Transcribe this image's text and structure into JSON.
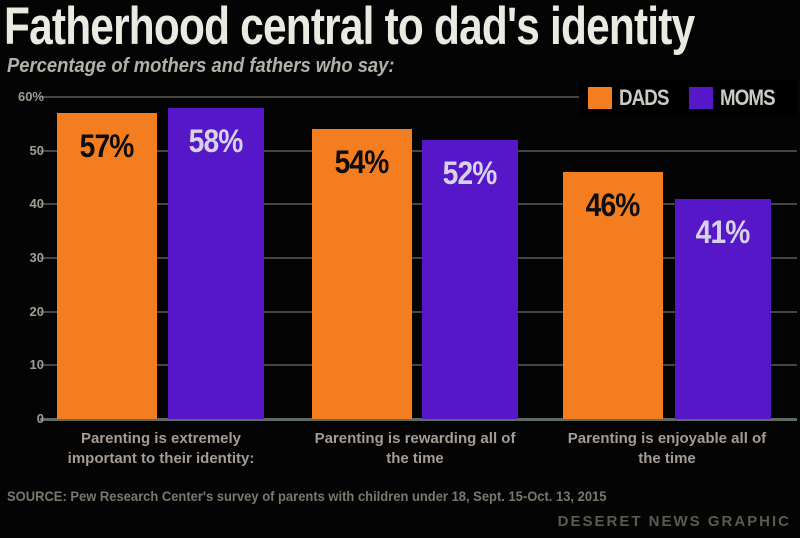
{
  "chart_data": {
    "type": "bar",
    "title": "Fatherhood central to dad's identity",
    "subtitle": "Percentage of mothers and fathers who say:",
    "categories": [
      "Parenting is extremely\nimportant to their identity:",
      "Parenting is rewarding all of\nthe time",
      "Parenting is enjoyable all of\nthe time"
    ],
    "series": [
      {
        "name": "DADS",
        "color": "#f47d20",
        "label_color": "#0d0d0d",
        "values": [
          57,
          54,
          46
        ]
      },
      {
        "name": "MOMS",
        "color": "#5517c8",
        "label_color": "#d7d2e8",
        "values": [
          58,
          52,
          41
        ]
      }
    ],
    "value_suffix": "%",
    "xlabel": "",
    "ylabel": "",
    "ylim": [
      0,
      60
    ],
    "yticks": [
      {
        "v": 60,
        "label": "60%"
      },
      {
        "v": 50,
        "label": "50"
      },
      {
        "v": 40,
        "label": "40"
      },
      {
        "v": 30,
        "label": "30"
      },
      {
        "v": 20,
        "label": "20"
      },
      {
        "v": 10,
        "label": "10"
      },
      {
        "v": 0,
        "label": "0"
      }
    ],
    "grid": true,
    "legend_position": "top-right"
  },
  "source": "SOURCE: Pew Research Center's survey of parents with children under 18, Sept. 15-Oct. 13, 2015",
  "credit": "DESERET NEWS GRAPHIC"
}
